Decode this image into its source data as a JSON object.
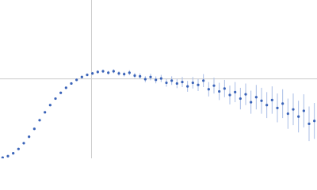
{
  "chart_data": {
    "type": "scatter",
    "xlim": [
      0,
      6
    ],
    "ylim": [
      0,
      2.2
    ],
    "reference_lines": {
      "x": 1.732,
      "y": 1.104,
      "color": "#cccccc"
    },
    "series": [
      {
        "color": "#3a63b8",
        "error_color": "#a9bde6",
        "x": [
          0.05,
          0.15,
          0.25,
          0.35,
          0.45,
          0.55,
          0.65,
          0.75,
          0.85,
          0.95,
          1.05,
          1.15,
          1.25,
          1.35,
          1.45,
          1.55,
          1.65,
          1.75,
          1.85,
          1.95,
          2.05,
          2.15,
          2.25,
          2.35,
          2.45,
          2.55,
          2.65,
          2.75,
          2.85,
          2.95,
          3.05,
          3.15,
          3.25,
          3.35,
          3.45,
          3.55,
          3.65,
          3.75,
          3.85,
          3.95,
          4.05,
          4.15,
          4.25,
          4.35,
          4.45,
          4.55,
          4.65,
          4.75,
          4.85,
          4.95,
          5.05,
          5.15,
          5.25,
          5.35,
          5.45,
          5.55,
          5.65,
          5.75,
          5.85,
          5.95
        ],
        "values": [
          0.01,
          0.03,
          0.07,
          0.13,
          0.21,
          0.3,
          0.41,
          0.53,
          0.64,
          0.74,
          0.83,
          0.91,
          0.98,
          1.04,
          1.09,
          1.13,
          1.16,
          1.18,
          1.2,
          1.21,
          1.19,
          1.21,
          1.18,
          1.17,
          1.19,
          1.15,
          1.14,
          1.1,
          1.13,
          1.09,
          1.11,
          1.05,
          1.08,
          1.04,
          1.06,
          1.0,
          1.05,
          1.02,
          1.08,
          0.96,
          1.01,
          0.93,
          0.97,
          0.88,
          0.92,
          0.83,
          0.89,
          0.78,
          0.85,
          0.8,
          0.74,
          0.81,
          0.7,
          0.76,
          0.62,
          0.68,
          0.58,
          0.66,
          0.48,
          0.52
        ],
        "errors": [
          0.002,
          0.003,
          0.004,
          0.005,
          0.006,
          0.007,
          0.008,
          0.009,
          0.01,
          0.01,
          0.012,
          0.012,
          0.014,
          0.015,
          0.016,
          0.018,
          0.02,
          0.02,
          0.022,
          0.024,
          0.026,
          0.028,
          0.03,
          0.032,
          0.034,
          0.036,
          0.04,
          0.042,
          0.045,
          0.048,
          0.05,
          0.055,
          0.06,
          0.065,
          0.07,
          0.075,
          0.08,
          0.085,
          0.09,
          0.1,
          0.11,
          0.12,
          0.12,
          0.13,
          0.14,
          0.15,
          0.15,
          0.16,
          0.17,
          0.18,
          0.18,
          0.19,
          0.2,
          0.2,
          0.21,
          0.22,
          0.22,
          0.23,
          0.24,
          0.25
        ]
      }
    ]
  }
}
